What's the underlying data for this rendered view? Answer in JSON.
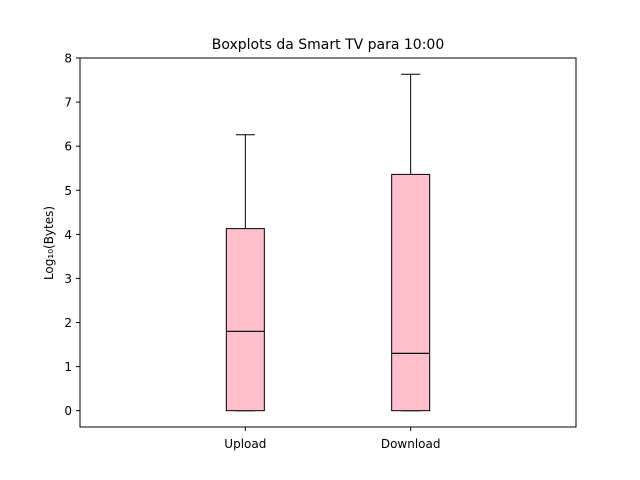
{
  "chart_data": {
    "type": "boxplot",
    "title": "Boxplots da Smart TV para 10:00",
    "xlabel": "",
    "ylabel": "Log₁₀(Bytes)",
    "ylim": [
      -0.37,
      8.0
    ],
    "yticks": [
      0,
      1,
      2,
      3,
      4,
      5,
      6,
      7,
      8
    ],
    "grid": false,
    "categories": [
      "Upload",
      "Download"
    ],
    "boxes": [
      {
        "category": "Upload",
        "whisker_low": 0,
        "q1": 0,
        "median": 1.8,
        "q3": 4.13,
        "whisker_high": 6.26
      },
      {
        "category": "Download",
        "whisker_low": 0,
        "q1": 0,
        "median": 1.3,
        "q3": 5.36,
        "whisker_high": 7.63
      }
    ],
    "colors": {
      "box_fill": "#ffc0cb",
      "line": "#000000"
    }
  }
}
